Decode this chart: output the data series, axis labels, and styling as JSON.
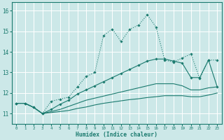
{
  "title": "",
  "xlabel": "Humidex (Indice chaleur)",
  "ylabel": "",
  "bg_color": "#cce8e8",
  "grid_color": "#ffffff",
  "line_color": "#1a7a6e",
  "xlim": [
    -0.5,
    23.5
  ],
  "ylim": [
    10.5,
    16.4
  ],
  "yticks": [
    11,
    12,
    13,
    14,
    15,
    16
  ],
  "xticks": [
    0,
    1,
    2,
    3,
    4,
    5,
    6,
    7,
    8,
    9,
    10,
    11,
    12,
    13,
    14,
    15,
    16,
    17,
    18,
    19,
    20,
    21,
    22,
    23
  ],
  "series1_x": [
    0,
    1,
    2,
    3,
    4,
    5,
    6,
    7,
    8,
    9,
    10,
    11,
    12,
    13,
    14,
    15,
    16,
    17,
    18,
    19,
    20,
    21,
    22,
    23
  ],
  "series1_y": [
    11.5,
    11.5,
    11.3,
    11.0,
    11.6,
    11.7,
    11.8,
    12.3,
    12.8,
    13.0,
    14.8,
    15.1,
    14.5,
    15.1,
    15.3,
    15.8,
    15.2,
    13.6,
    13.5,
    13.7,
    13.9,
    12.7,
    13.6,
    13.6
  ],
  "series2_x": [
    0,
    1,
    2,
    3,
    4,
    5,
    6,
    7,
    8,
    9,
    10,
    11,
    12,
    13,
    14,
    15,
    16,
    17,
    18,
    19,
    20,
    21,
    22,
    23
  ],
  "series2_y": [
    11.5,
    11.5,
    11.3,
    11.0,
    11.2,
    11.45,
    11.65,
    11.95,
    12.15,
    12.35,
    12.55,
    12.75,
    12.95,
    13.15,
    13.35,
    13.55,
    13.65,
    13.65,
    13.55,
    13.45,
    12.75,
    12.75,
    13.6,
    12.3
  ],
  "series3_x": [
    0,
    1,
    2,
    3,
    4,
    5,
    6,
    7,
    8,
    9,
    10,
    11,
    12,
    13,
    14,
    15,
    16,
    17,
    18,
    19,
    20,
    21,
    22,
    23
  ],
  "series3_y": [
    11.5,
    11.5,
    11.3,
    11.0,
    11.1,
    11.2,
    11.35,
    11.5,
    11.65,
    11.75,
    11.85,
    11.95,
    12.05,
    12.15,
    12.25,
    12.35,
    12.45,
    12.45,
    12.45,
    12.35,
    12.15,
    12.15,
    12.25,
    12.3
  ],
  "series4_x": [
    0,
    1,
    2,
    3,
    4,
    5,
    6,
    7,
    8,
    9,
    10,
    11,
    12,
    13,
    14,
    15,
    16,
    17,
    18,
    19,
    20,
    21,
    22,
    23
  ],
  "series4_y": [
    11.5,
    11.5,
    11.3,
    11.0,
    11.05,
    11.1,
    11.15,
    11.25,
    11.32,
    11.42,
    11.5,
    11.56,
    11.62,
    11.68,
    11.72,
    11.78,
    11.82,
    11.87,
    11.87,
    11.87,
    11.82,
    11.82,
    11.9,
    12.0
  ]
}
